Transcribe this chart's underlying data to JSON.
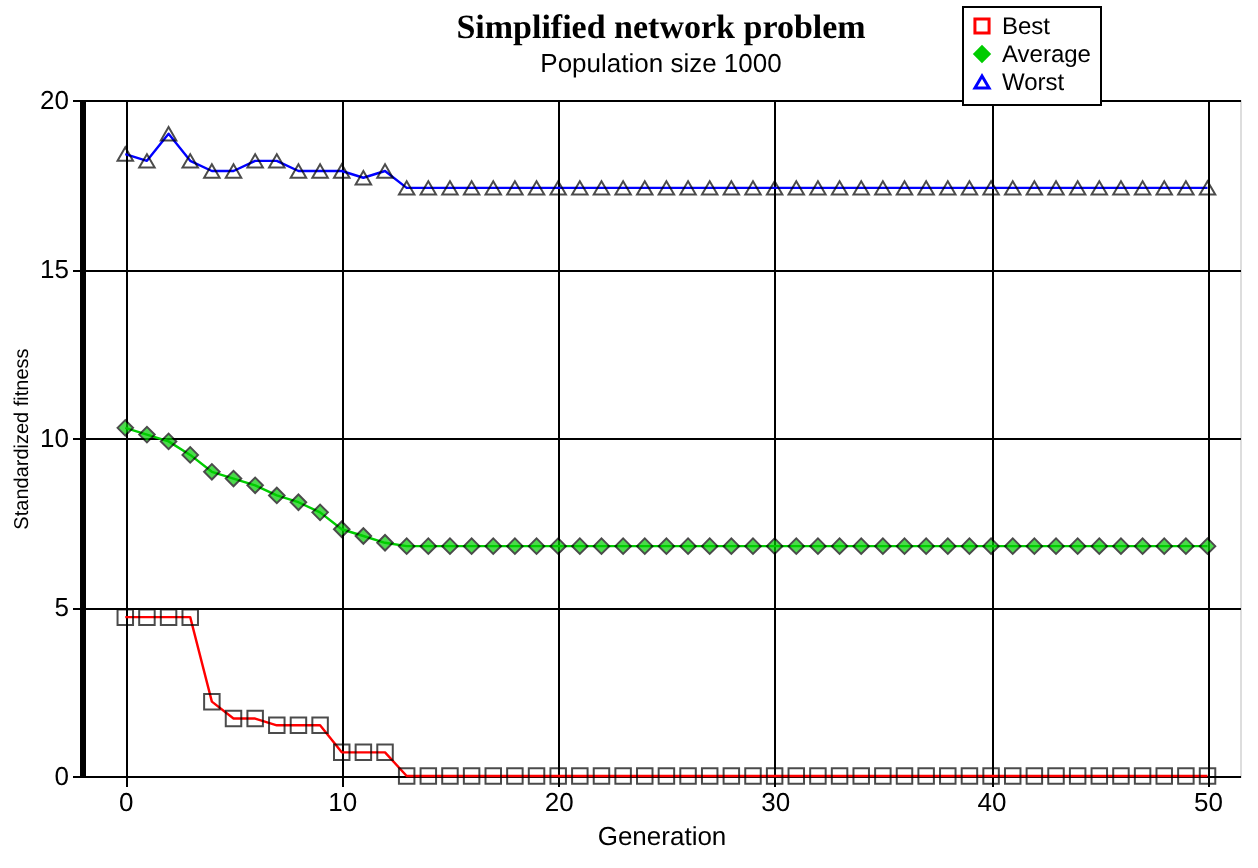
{
  "chart_data": {
    "type": "line",
    "title": "Simplified network problem",
    "subtitle": "Population size 1000",
    "xlabel": "Generation",
    "ylabel": "Standardized fitness",
    "x": [
      0,
      1,
      2,
      3,
      4,
      5,
      6,
      7,
      8,
      9,
      10,
      11,
      12,
      13,
      14,
      15,
      16,
      17,
      18,
      19,
      20,
      21,
      22,
      23,
      24,
      25,
      26,
      27,
      28,
      29,
      30,
      31,
      32,
      33,
      34,
      35,
      36,
      37,
      38,
      39,
      40,
      41,
      42,
      43,
      44,
      45,
      46,
      47,
      48,
      49,
      50
    ],
    "series": [
      {
        "name": "Best",
        "color": "#ff0000",
        "marker": "square",
        "values": [
          4.7,
          4.7,
          4.7,
          4.7,
          2.2,
          1.7,
          1.7,
          1.5,
          1.5,
          1.5,
          0.7,
          0.7,
          0.7,
          0,
          0,
          0,
          0,
          0,
          0,
          0,
          0,
          0,
          0,
          0,
          0,
          0,
          0,
          0,
          0,
          0,
          0,
          0,
          0,
          0,
          0,
          0,
          0,
          0,
          0,
          0,
          0,
          0,
          0,
          0,
          0,
          0,
          0,
          0,
          0,
          0,
          0
        ]
      },
      {
        "name": "Average",
        "color": "#00cc00",
        "marker": "diamond",
        "values": [
          10.3,
          10.1,
          9.9,
          9.5,
          9.0,
          8.8,
          8.6,
          8.3,
          8.1,
          7.8,
          7.3,
          7.1,
          6.9,
          6.8,
          6.8,
          6.8,
          6.8,
          6.8,
          6.8,
          6.8,
          6.8,
          6.8,
          6.8,
          6.8,
          6.8,
          6.8,
          6.8,
          6.8,
          6.8,
          6.8,
          6.8,
          6.8,
          6.8,
          6.8,
          6.8,
          6.8,
          6.8,
          6.8,
          6.8,
          6.8,
          6.8,
          6.8,
          6.8,
          6.8,
          6.8,
          6.8,
          6.8,
          6.8,
          6.8,
          6.8,
          6.8
        ]
      },
      {
        "name": "Worst",
        "color": "#0000ff",
        "marker": "triangle",
        "values": [
          18.4,
          18.2,
          19.0,
          18.2,
          17.9,
          17.9,
          18.2,
          18.2,
          17.9,
          17.9,
          17.9,
          17.7,
          17.9,
          17.4,
          17.4,
          17.4,
          17.4,
          17.4,
          17.4,
          17.4,
          17.4,
          17.4,
          17.4,
          17.4,
          17.4,
          17.4,
          17.4,
          17.4,
          17.4,
          17.4,
          17.4,
          17.4,
          17.4,
          17.4,
          17.4,
          17.4,
          17.4,
          17.4,
          17.4,
          17.4,
          17.4,
          17.4,
          17.4,
          17.4,
          17.4,
          17.4,
          17.4,
          17.4,
          17.4,
          17.4,
          17.4
        ]
      }
    ],
    "xlim": [
      -2,
      51.5
    ],
    "xticks": [
      0,
      10,
      20,
      30,
      40,
      50
    ],
    "ylim": [
      0,
      20
    ],
    "yticks": [
      0,
      5,
      10,
      15,
      20
    ],
    "grid": true,
    "legend": "top right"
  }
}
